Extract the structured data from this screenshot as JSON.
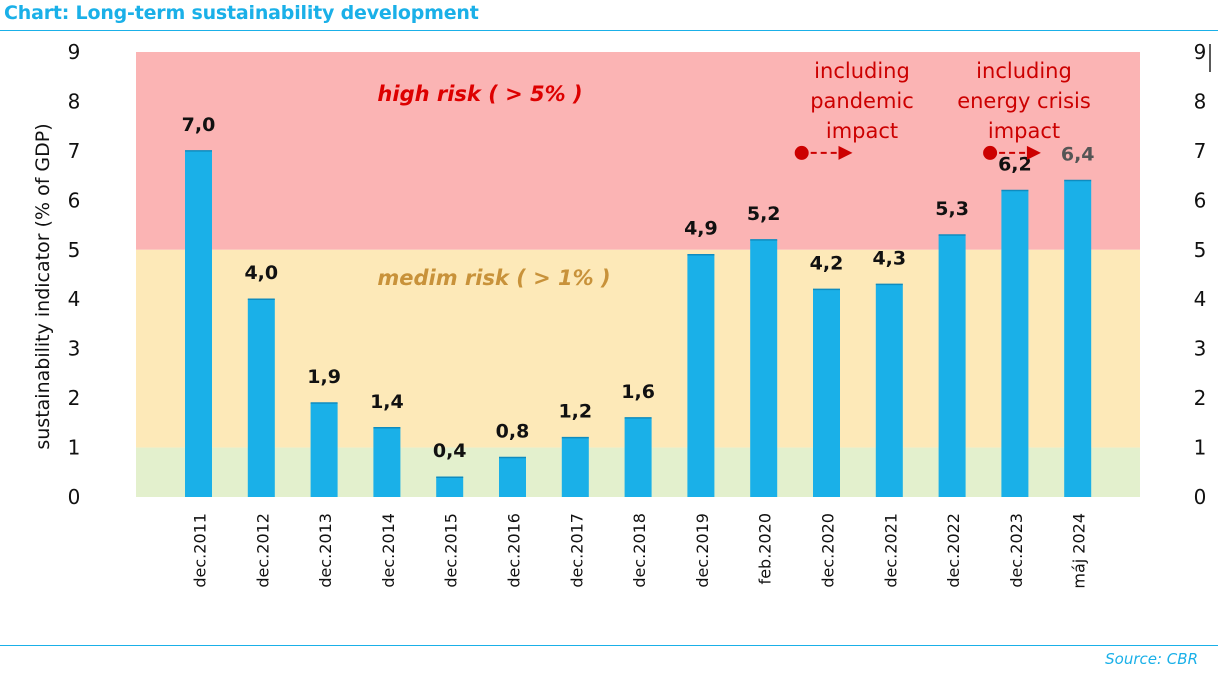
{
  "header": {
    "title": "Chart: Long-term sustainability development"
  },
  "footer": {
    "source": "Source: CBR"
  },
  "chart_data": {
    "type": "bar",
    "title": "Chart: Long-term sustainability development",
    "ylabel": "sustainability indicator (% of GDP)",
    "ylim": [
      0,
      9
    ],
    "yticks": [
      "0",
      "1",
      "2",
      "3",
      "4",
      "5",
      "6",
      "7",
      "8",
      "9"
    ],
    "secondary_axis": true,
    "grid": false,
    "categories": [
      "dec.2011",
      "dec.2012",
      "dec.2013",
      "dec.2014",
      "dec.2015",
      "dec.2016",
      "dec.2017",
      "dec.2018",
      "dec.2019",
      "feb.2020",
      "dec.2020",
      "dec.2021",
      "dec.2022",
      "dec.2023",
      "máj 2024"
    ],
    "values": [
      7.0,
      4.0,
      1.9,
      1.4,
      0.4,
      0.8,
      1.2,
      1.6,
      4.9,
      5.2,
      4.2,
      4.3,
      5.3,
      6.2,
      6.4
    ],
    "value_labels": [
      "7,0",
      "4,0",
      "1,9",
      "1,4",
      "0,4",
      "0,8",
      "1,2",
      "1,6",
      "4,9",
      "5,2",
      "4,2",
      "4,3",
      "5,3",
      "6,2",
      "6,4"
    ],
    "bar_color": "#1ab0e8",
    "zones": [
      {
        "from": 5,
        "to": 9,
        "color": "#fbb4b4",
        "label": "high risk ( > 5% )",
        "label_color": "#dd0000"
      },
      {
        "from": 1,
        "to": 5,
        "color": "#fde9b8",
        "label": "medim risk ( > 1% )",
        "label_color": "#c8923a"
      },
      {
        "from": 0,
        "to": 1,
        "color": "#e3f0cd",
        "label": ""
      }
    ],
    "annotations": [
      {
        "lines": [
          "including",
          "pandemic",
          "impact"
        ],
        "from_category": "feb.2020",
        "to_category": "dec.2020",
        "y": 7,
        "color": "#cc0000"
      },
      {
        "lines": [
          "including",
          "energy crisis",
          "impact"
        ],
        "from_category": "dec.2022",
        "to_category": "dec.2023",
        "y": 7,
        "color": "#cc0000"
      }
    ]
  }
}
